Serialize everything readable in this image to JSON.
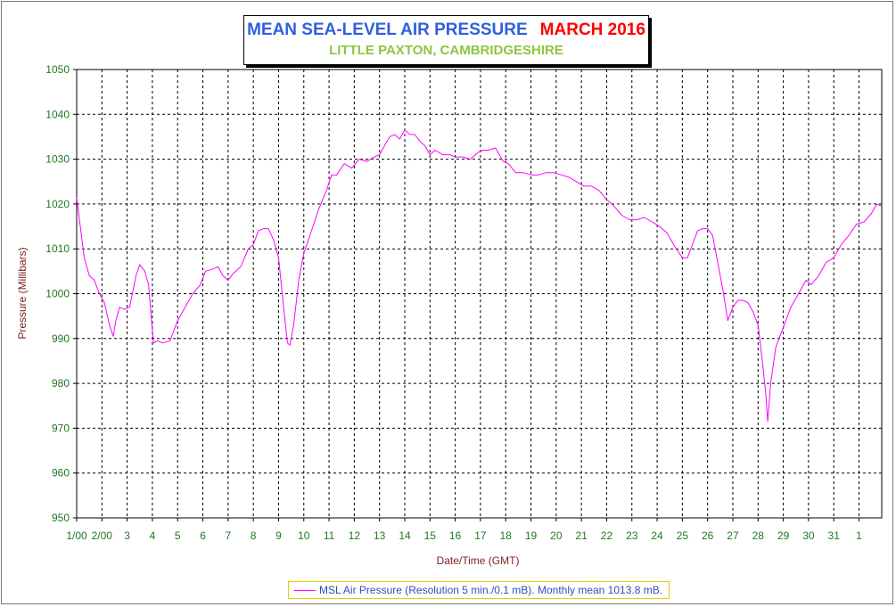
{
  "title": {
    "main": "MEAN SEA-LEVEL AIR PRESSURE",
    "month": "MARCH 2016",
    "subtitle": "LITTLE PAXTON, CAMBRIDGESHIRE",
    "main_color": "#2f5fe0",
    "month_color": "#ff0000",
    "subtitle_color": "#8cc63f"
  },
  "chart_data": {
    "type": "line",
    "title": "MEAN SEA-LEVEL AIR PRESSURE   MARCH 2016",
    "subtitle": "LITTLE PAXTON, CAMBRIDGESHIRE",
    "xlabel": "Date/Time (GMT)",
    "ylabel": "Pressure (Millibars)",
    "ylim": [
      950,
      1050
    ],
    "xlim": [
      1.0,
      32.9
    ],
    "grid": true,
    "legend_position": "bottom",
    "x_tick_values": [
      1,
      2,
      3,
      4,
      5,
      6,
      7,
      8,
      9,
      10,
      11,
      12,
      13,
      14,
      15,
      16,
      17,
      18,
      19,
      20,
      21,
      22,
      23,
      24,
      25,
      26,
      27,
      28,
      29,
      30,
      31,
      32
    ],
    "x_tick_labels": [
      "1/00",
      "2/00",
      "3",
      "4",
      "5",
      "6",
      "7",
      "8",
      "9",
      "10",
      "11",
      "12",
      "13",
      "14",
      "15",
      "16",
      "17",
      "18",
      "19",
      "20",
      "21",
      "22",
      "23",
      "24",
      "25",
      "26",
      "27",
      "28",
      "29",
      "30",
      "31",
      "1"
    ],
    "y_tick_labels": [
      "950",
      "960",
      "970",
      "980",
      "990",
      "1000",
      "1010",
      "1020",
      "1030",
      "1040",
      "1050"
    ],
    "series": [
      {
        "name": "MSL Air Pressure (Resolution 5 min./0.1 mB). Monthly mean 1013.8 mB.",
        "color": "#ff00ff",
        "x": [
          1.0,
          1.1,
          1.3,
          1.5,
          1.7,
          1.9,
          2.1,
          2.3,
          2.45,
          2.55,
          2.7,
          2.9,
          3.1,
          3.35,
          3.5,
          3.7,
          3.85,
          3.95,
          4.05,
          4.2,
          4.4,
          4.7,
          5.0,
          5.3,
          5.6,
          5.9,
          6.1,
          6.4,
          6.6,
          6.8,
          7.0,
          7.2,
          7.5,
          7.8,
          8.0,
          8.2,
          8.4,
          8.6,
          8.8,
          9.0,
          9.2,
          9.35,
          9.45,
          9.6,
          9.8,
          10.0,
          10.3,
          10.6,
          10.9,
          11.1,
          11.3,
          11.6,
          11.9,
          12.2,
          12.5,
          12.8,
          13.0,
          13.2,
          13.4,
          13.6,
          13.8,
          14.0,
          14.2,
          14.4,
          14.6,
          14.8,
          15.0,
          15.2,
          15.5,
          15.8,
          16.0,
          16.3,
          16.6,
          16.9,
          17.1,
          17.3,
          17.6,
          17.9,
          18.1,
          18.4,
          18.7,
          19.0,
          19.3,
          19.6,
          19.9,
          20.2,
          20.5,
          20.8,
          21.1,
          21.4,
          21.7,
          22.0,
          22.3,
          22.6,
          22.9,
          23.2,
          23.5,
          23.8,
          24.1,
          24.4,
          24.7,
          25.0,
          25.2,
          25.4,
          25.6,
          25.8,
          26.0,
          26.2,
          26.4,
          26.6,
          26.8,
          27.0,
          27.2,
          27.4,
          27.6,
          27.8,
          28.0,
          28.15,
          28.3,
          28.38,
          28.5,
          28.7,
          28.9,
          29.1,
          29.3,
          29.6,
          29.9,
          30.1,
          30.4,
          30.7,
          31.0,
          31.3,
          31.6,
          31.9,
          32.2,
          32.5,
          32.7,
          32.9
        ],
        "values": [
          1021.5,
          1017,
          1008,
          1004,
          1003,
          1000,
          998,
          993,
          990.5,
          994,
          997,
          996.5,
          997,
          1004,
          1006.5,
          1005,
          1002,
          995,
          989,
          989.5,
          989,
          989.5,
          994,
          997,
          1000,
          1002,
          1005,
          1005.5,
          1006,
          1004,
          1003,
          1004.5,
          1006,
          1010,
          1011,
          1014,
          1014.5,
          1014.5,
          1012,
          1008,
          997,
          989,
          988.5,
          993,
          1003,
          1009,
          1014,
          1019,
          1023,
          1026.5,
          1026.5,
          1029,
          1028,
          1030,
          1029.5,
          1030.5,
          1031,
          1033,
          1035,
          1035.5,
          1034.5,
          1036.5,
          1035.5,
          1035.5,
          1034,
          1033,
          1031,
          1032,
          1031,
          1031,
          1030.5,
          1030.5,
          1030,
          1031.5,
          1032,
          1032,
          1032.5,
          1029.5,
          1029,
          1027,
          1027,
          1026.5,
          1026.5,
          1027,
          1027,
          1026.5,
          1026,
          1025,
          1024,
          1024,
          1023,
          1021,
          1019.5,
          1017.5,
          1016.5,
          1016.5,
          1017,
          1016,
          1015,
          1013.5,
          1010.5,
          1008,
          1008,
          1011,
          1014,
          1014.5,
          1014.5,
          1013,
          1007,
          1001,
          994,
          997,
          998.5,
          998.5,
          998,
          996,
          993,
          986,
          978,
          971.5,
          980,
          988,
          991,
          994,
          997,
          1000,
          1003,
          1002,
          1004,
          1007,
          1008,
          1011,
          1013,
          1015.5,
          1016,
          1018,
          1020,
          1019.5
        ]
      }
    ]
  },
  "legend": {
    "text": "MSL Air Pressure (Resolution 5 min./0.1 mB). Monthly mean 1013.8 mB.",
    "color": "#ff00ff"
  }
}
